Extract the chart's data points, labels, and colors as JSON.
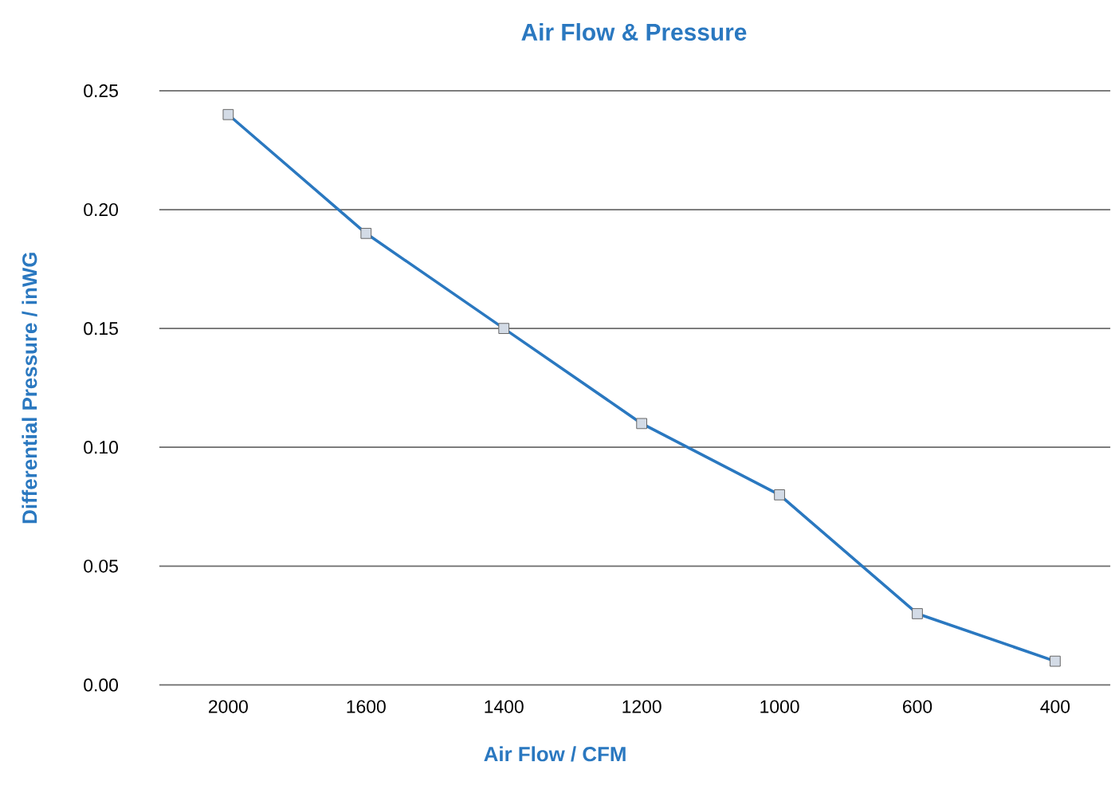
{
  "chart_data": {
    "type": "line",
    "title": "Air Flow & Pressure",
    "xlabel": "Air Flow / CFM",
    "ylabel": "Differential Pressure / inWG",
    "categories": [
      "2000",
      "1600",
      "1400",
      "1200",
      "1000",
      "600",
      "400"
    ],
    "series": [
      {
        "color": "#2a78c0",
        "values": [
          0.24,
          0.19,
          0.15,
          0.11,
          0.08,
          0.03,
          0.01
        ]
      }
    ],
    "ylim": [
      0,
      0.25
    ],
    "yticks": [
      {
        "value": 0,
        "label": "0.00"
      },
      {
        "value": 0.05,
        "label": "0.05"
      },
      {
        "value": 0.1,
        "label": "0.10"
      },
      {
        "value": 0.15,
        "label": "0.15"
      },
      {
        "value": 0.2,
        "label": "0.20"
      },
      {
        "value": 0.25,
        "label": "0.25"
      }
    ],
    "grid": "y",
    "marker": "square",
    "line_style": "solid"
  }
}
